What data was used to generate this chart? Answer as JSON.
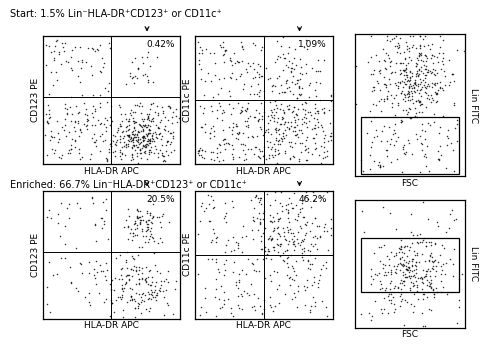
{
  "title_top": "Start: 1.5% Lin⁻HLA-DR⁺CD123⁺ or CD11c⁺",
  "title_bottom": "Enriched: 66.7% Lin⁻HLA-DR⁺CD123⁺ or CD11c⁺",
  "pct_top_left": "0.42%",
  "pct_top_mid": "1.09%",
  "pct_bot_left": "20.5%",
  "pct_bot_mid": "46.2%",
  "xlabel_scatter": "HLA-DR APC",
  "ylabel_left": "CD123 PE",
  "ylabel_mid": "CD11c PE",
  "ylabel_right": "Lin FITC",
  "xlabel_right": "FSC",
  "dot_color": "#111111",
  "title_fontsize": 7.0,
  "label_fontsize": 6.5,
  "pct_fontsize": 6.5
}
